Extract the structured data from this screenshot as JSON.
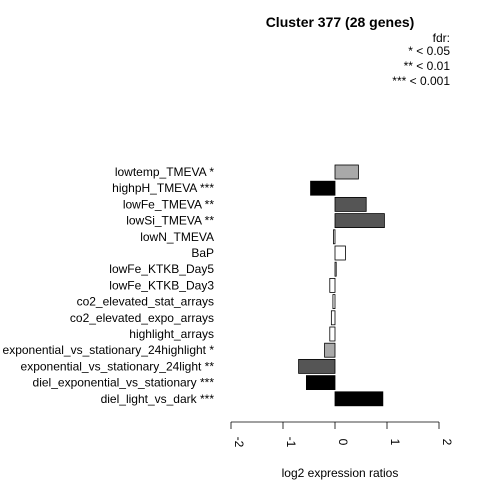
{
  "chart_data": {
    "type": "bar",
    "orientation": "horizontal",
    "title": "Cluster 377 (28 genes)",
    "xlabel": "log2 expression ratios",
    "ylabel": "",
    "xlim": [
      -2,
      2
    ],
    "xticks": [
      "-2",
      "-1",
      "0",
      "1",
      "2"
    ],
    "grid": false,
    "legend": {
      "placement": "top-right",
      "title": "fdr:",
      "entries": [
        "* < 0.05",
        "** < 0.01",
        "*** < 0.001"
      ]
    },
    "categories": [
      "lowtemp_TMEVA *",
      "highpH_TMEVA ***",
      "lowFe_TMEVA **",
      "lowSi_TMEVA **",
      "lowN_TMEVA",
      "BaP",
      "lowFe_KTKB_Day5",
      "lowFe_KTKB_Day3",
      "co2_elevated_stat_arrays",
      "co2_elevated_expo_arrays",
      "highlight_arrays",
      "exponential_vs_stationary_24highlight *",
      "exponential_vs_stationary_24light **",
      "diel_exponential_vs_stationary ***",
      "diel_light_vs_dark ***"
    ],
    "values": [
      0.45,
      -0.47,
      0.6,
      0.95,
      -0.03,
      0.2,
      0.02,
      -0.1,
      -0.04,
      -0.07,
      -0.1,
      -0.2,
      -0.7,
      -0.55,
      0.92
    ],
    "colors": [
      "#a9a9a9",
      "#000000",
      "#555555",
      "#555555",
      "#ffffff",
      "#ffffff",
      "#ffffff",
      "#ffffff",
      "#ffffff",
      "#ffffff",
      "#ffffff",
      "#a9a9a9",
      "#555555",
      "#000000",
      "#000000"
    ]
  }
}
